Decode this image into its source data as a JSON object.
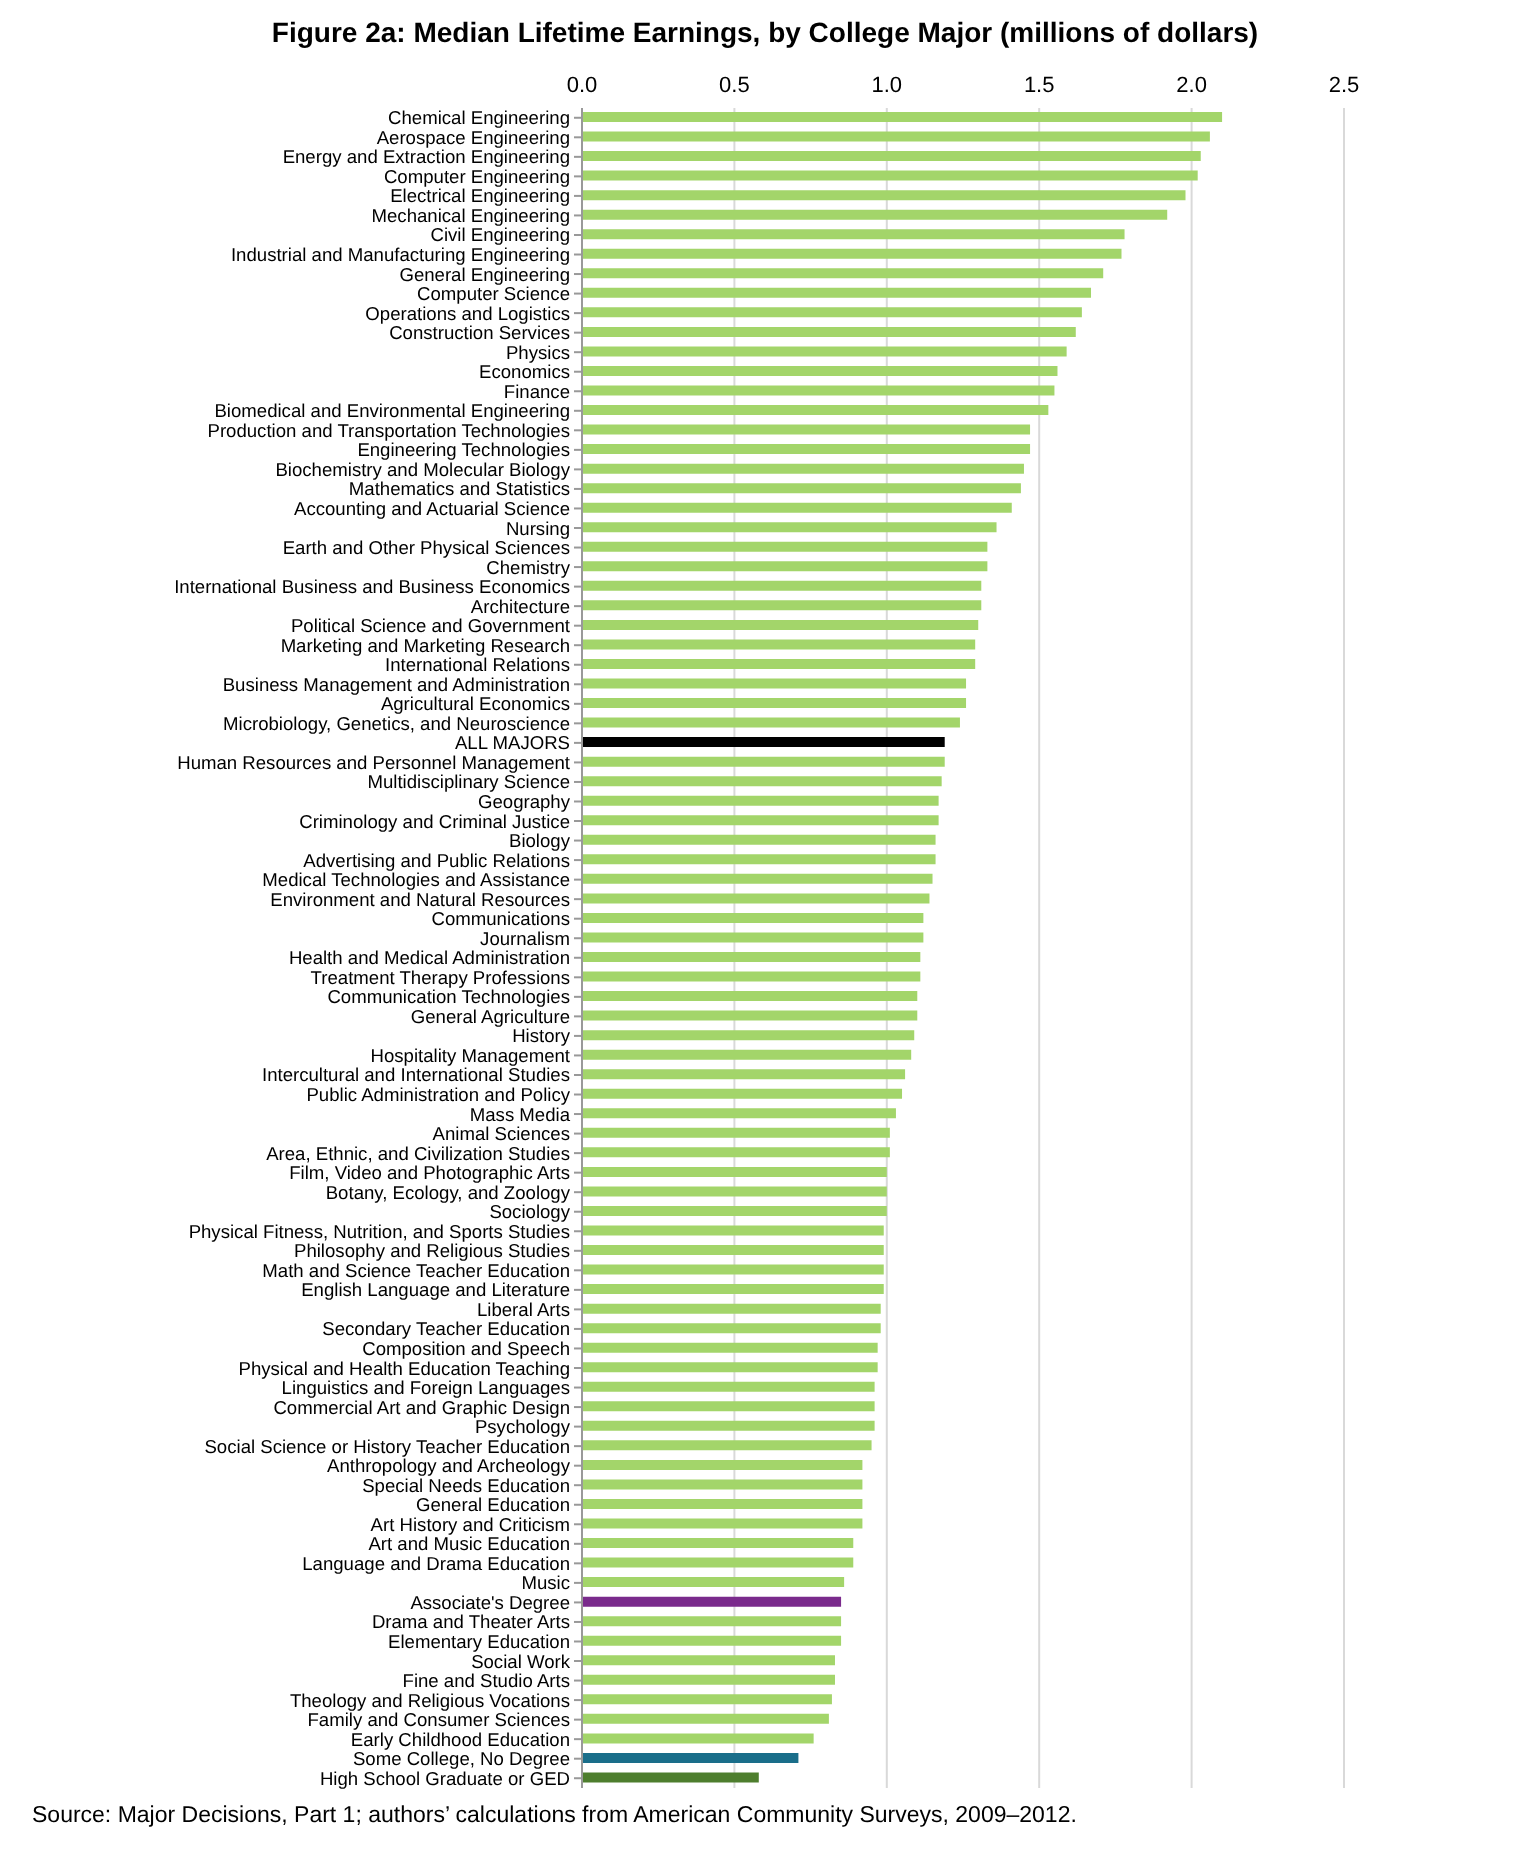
{
  "chart_data": {
    "type": "bar",
    "orientation": "horizontal",
    "title": "Figure 2a: Median Lifetime Earnings, by College Major (millions of dollars)",
    "categories": [
      "Chemical Engineering",
      "Aerospace Engineering",
      "Energy and Extraction Engineering",
      "Computer Engineering",
      "Electrical Engineering",
      "Mechanical Engineering",
      "Civil Engineering",
      "Industrial and Manufacturing Engineering",
      "General Engineering",
      "Computer Science",
      "Operations and Logistics",
      "Construction Services",
      "Physics",
      "Economics",
      "Finance",
      "Biomedical and Environmental Engineering",
      "Production and Transportation Technologies",
      "Engineering Technologies",
      "Biochemistry and Molecular Biology",
      "Mathematics and Statistics",
      "Accounting and Actuarial Science",
      "Nursing",
      "Earth and Other Physical Sciences",
      "Chemistry",
      "International Business and Business Economics",
      "Architecture",
      "Political Science and Government",
      "Marketing and Marketing Research",
      "International Relations",
      "Business Management and Administration",
      "Agricultural Economics",
      "Microbiology, Genetics, and Neuroscience",
      "ALL MAJORS",
      "Human Resources and Personnel Management",
      "Multidisciplinary Science",
      "Geography",
      "Criminology and Criminal Justice",
      "Biology",
      "Advertising and Public Relations",
      "Medical Technologies and Assistance",
      "Environment and Natural Resources",
      "Communications",
      "Journalism",
      "Health and Medical Administration",
      "Treatment Therapy Professions",
      "Communication Technologies",
      "General Agriculture",
      "History",
      "Hospitality Management",
      "Intercultural and International Studies",
      "Public Administration and Policy",
      "Mass Media",
      "Animal Sciences",
      "Area, Ethnic, and Civilization Studies",
      "Film, Video and Photographic Arts",
      "Botany, Ecology, and Zoology",
      "Sociology",
      "Physical Fitness, Nutrition, and Sports Studies",
      "Philosophy and Religious Studies",
      "Math and Science Teacher Education",
      "English Language and Literature",
      "Liberal Arts",
      "Secondary Teacher Education",
      "Composition and Speech",
      "Physical and Health Education Teaching",
      "Linguistics and Foreign Languages",
      "Commercial Art and Graphic Design",
      "Psychology",
      "Social Science or History Teacher Education",
      "Anthropology and Archeology",
      "Special Needs Education",
      "General Education",
      "Art History and Criticism",
      "Art and Music Education",
      "Language and Drama Education",
      "Music",
      "Associate's Degree",
      "Drama and Theater Arts",
      "Elementary Education",
      "Social Work",
      "Fine and Studio Arts",
      "Theology and Religious Vocations",
      "Family and Consumer Sciences",
      "Early Childhood Education",
      "Some College, No Degree",
      "High School Graduate or GED"
    ],
    "values": [
      2.1,
      2.06,
      2.03,
      2.02,
      1.98,
      1.92,
      1.78,
      1.77,
      1.71,
      1.67,
      1.64,
      1.62,
      1.59,
      1.56,
      1.55,
      1.53,
      1.47,
      1.47,
      1.45,
      1.44,
      1.41,
      1.36,
      1.33,
      1.33,
      1.31,
      1.31,
      1.3,
      1.29,
      1.29,
      1.26,
      1.26,
      1.24,
      1.19,
      1.19,
      1.18,
      1.17,
      1.17,
      1.16,
      1.16,
      1.15,
      1.14,
      1.12,
      1.12,
      1.11,
      1.11,
      1.1,
      1.1,
      1.09,
      1.08,
      1.06,
      1.05,
      1.03,
      1.01,
      1.01,
      1.0,
      1.0,
      1.0,
      0.99,
      0.99,
      0.99,
      0.99,
      0.98,
      0.98,
      0.97,
      0.97,
      0.96,
      0.96,
      0.96,
      0.95,
      0.92,
      0.92,
      0.92,
      0.92,
      0.89,
      0.89,
      0.86,
      0.85,
      0.85,
      0.85,
      0.83,
      0.83,
      0.82,
      0.81,
      0.76,
      0.71,
      0.58
    ],
    "colors": [
      "#a3d56a",
      "#a3d56a",
      "#a3d56a",
      "#a3d56a",
      "#a3d56a",
      "#a3d56a",
      "#a3d56a",
      "#a3d56a",
      "#a3d56a",
      "#a3d56a",
      "#a3d56a",
      "#a3d56a",
      "#a3d56a",
      "#a3d56a",
      "#a3d56a",
      "#a3d56a",
      "#a3d56a",
      "#a3d56a",
      "#a3d56a",
      "#a3d56a",
      "#a3d56a",
      "#a3d56a",
      "#a3d56a",
      "#a3d56a",
      "#a3d56a",
      "#a3d56a",
      "#a3d56a",
      "#a3d56a",
      "#a3d56a",
      "#a3d56a",
      "#a3d56a",
      "#a3d56a",
      "#000000",
      "#a3d56a",
      "#a3d56a",
      "#a3d56a",
      "#a3d56a",
      "#a3d56a",
      "#a3d56a",
      "#a3d56a",
      "#a3d56a",
      "#a3d56a",
      "#a3d56a",
      "#a3d56a",
      "#a3d56a",
      "#a3d56a",
      "#a3d56a",
      "#a3d56a",
      "#a3d56a",
      "#a3d56a",
      "#a3d56a",
      "#a3d56a",
      "#a3d56a",
      "#a3d56a",
      "#a3d56a",
      "#a3d56a",
      "#a3d56a",
      "#a3d56a",
      "#a3d56a",
      "#a3d56a",
      "#a3d56a",
      "#a3d56a",
      "#a3d56a",
      "#a3d56a",
      "#a3d56a",
      "#a3d56a",
      "#a3d56a",
      "#a3d56a",
      "#a3d56a",
      "#a3d56a",
      "#a3d56a",
      "#a3d56a",
      "#a3d56a",
      "#a3d56a",
      "#a3d56a",
      "#a3d56a",
      "#7a2a8c",
      "#a3d56a",
      "#a3d56a",
      "#a3d56a",
      "#a3d56a",
      "#a3d56a",
      "#a3d56a",
      "#a3d56a",
      "#1a6e8a",
      "#4e7e2e"
    ],
    "xlim": [
      0,
      2.5
    ],
    "xticks": [
      {
        "value": 0,
        "label": "0.0"
      },
      {
        "value": 0.5,
        "label": "0.5"
      },
      {
        "value": 1,
        "label": "1.0"
      },
      {
        "value": 1.5,
        "label": "1.5"
      },
      {
        "value": 2,
        "label": "2.0"
      },
      {
        "value": 2.5,
        "label": "2.5"
      }
    ],
    "grid": "x",
    "legend": false,
    "annotations": [
      "Source: Major Decisions, Part 1; authors’ calculations from American Community Surveys, 2009–2012."
    ]
  }
}
